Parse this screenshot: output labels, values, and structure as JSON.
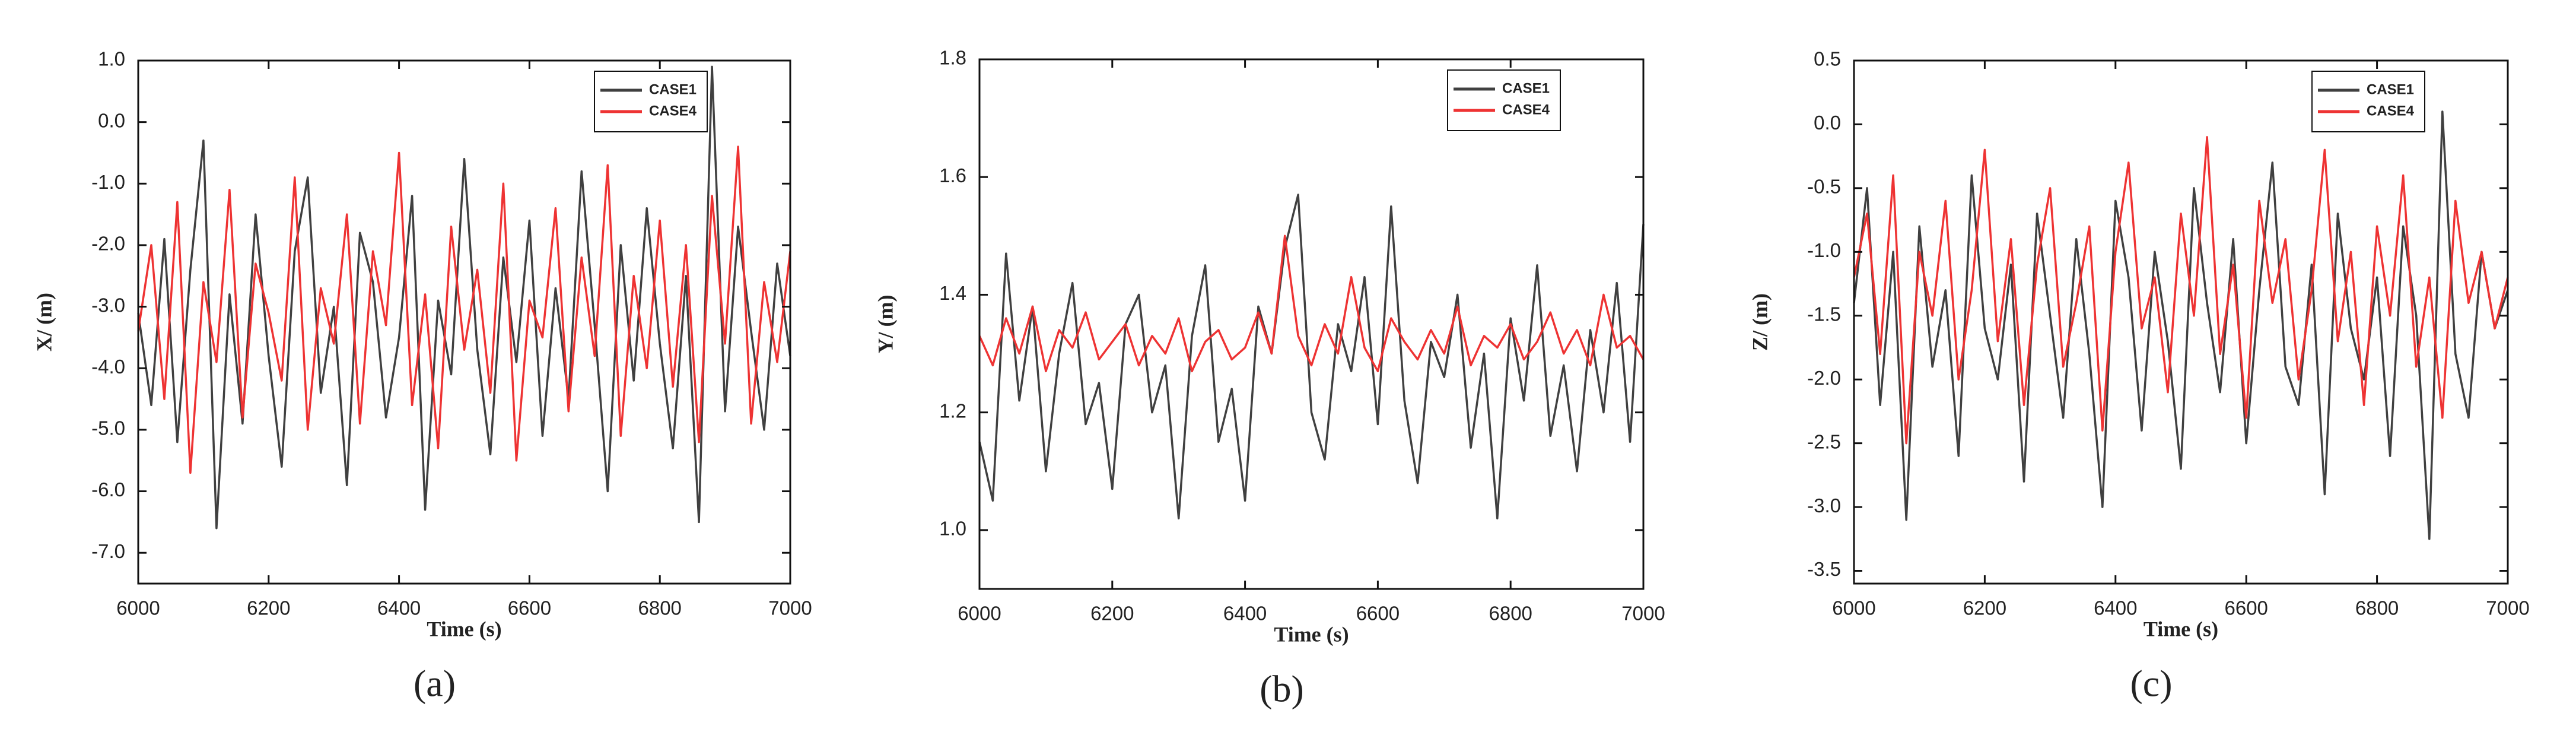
{
  "chart_data": [
    {
      "type": "line",
      "caption": "(a)",
      "xlabel": "Time (s)",
      "ylabel": "X/ (m)",
      "legend": "upper right",
      "xlim": [
        6000,
        7000
      ],
      "xticks": [
        6000,
        6200,
        6400,
        6600,
        6800,
        7000
      ],
      "ylim": [
        -7.5,
        1.0
      ],
      "yticks": [
        {
          "value": 1,
          "label": "1.0"
        },
        {
          "value": 0,
          "label": "0.0"
        },
        {
          "value": -1,
          "label": "-1.0"
        },
        {
          "value": -2,
          "label": "-2.0"
        },
        {
          "value": -3,
          "label": "-3.0"
        },
        {
          "value": -4,
          "label": "-4.0"
        },
        {
          "value": -5,
          "label": "-5.0"
        },
        {
          "value": -6,
          "label": "-6.0"
        },
        {
          "value": -7,
          "label": "-7.0"
        }
      ],
      "x": [
        6000,
        6020,
        6040,
        6060,
        6080,
        6100,
        6120,
        6140,
        6160,
        6180,
        6200,
        6220,
        6240,
        6260,
        6280,
        6300,
        6320,
        6340,
        6360,
        6380,
        6400,
        6420,
        6440,
        6460,
        6480,
        6500,
        6520,
        6540,
        6560,
        6580,
        6600,
        6620,
        6640,
        6660,
        6680,
        6700,
        6720,
        6740,
        6760,
        6780,
        6800,
        6820,
        6840,
        6860,
        6880,
        6900,
        6920,
        6940,
        6960,
        6980,
        7000
      ],
      "series": [
        {
          "name": "CASE1",
          "color": "#404040",
          "values": [
            -3.1,
            -4.6,
            -1.9,
            -5.2,
            -2.4,
            -0.3,
            -6.6,
            -2.8,
            -4.9,
            -1.5,
            -3.8,
            -5.6,
            -2.1,
            -0.9,
            -4.4,
            -3.0,
            -5.9,
            -1.8,
            -2.6,
            -4.8,
            -3.5,
            -1.2,
            -6.3,
            -2.9,
            -4.1,
            -0.6,
            -3.7,
            -5.4,
            -2.2,
            -3.9,
            -1.6,
            -5.1,
            -2.7,
            -4.5,
            -0.8,
            -3.3,
            -6.0,
            -2.0,
            -4.2,
            -1.4,
            -3.6,
            -5.3,
            -2.5,
            -6.5,
            0.9,
            -4.7,
            -1.7,
            -3.4,
            -5.0,
            -2.3,
            -3.8
          ]
        },
        {
          "name": "CASE4",
          "color": "#ee3333",
          "values": [
            -3.4,
            -2.0,
            -4.5,
            -1.3,
            -5.7,
            -2.6,
            -3.9,
            -1.1,
            -4.8,
            -2.3,
            -3.1,
            -4.2,
            -0.9,
            -5.0,
            -2.7,
            -3.6,
            -1.5,
            -4.9,
            -2.1,
            -3.3,
            -0.5,
            -4.6,
            -2.8,
            -5.3,
            -1.7,
            -3.7,
            -2.4,
            -4.4,
            -1.0,
            -5.5,
            -2.9,
            -3.5,
            -1.4,
            -4.7,
            -2.2,
            -3.8,
            -0.7,
            -5.1,
            -2.5,
            -4.0,
            -1.6,
            -4.3,
            -2.0,
            -5.2,
            -1.2,
            -3.6,
            -0.4,
            -4.9,
            -2.6,
            -3.9,
            -2.1
          ]
        }
      ]
    },
    {
      "type": "line",
      "caption": "(b)",
      "xlabel": "Time (s)",
      "ylabel": "Y/ (m)",
      "legend": "upper right",
      "xlim": [
        6000,
        7000
      ],
      "xticks": [
        6000,
        6200,
        6400,
        6600,
        6800,
        7000
      ],
      "ylim": [
        0.9,
        1.8
      ],
      "yticks": [
        {
          "value": 1,
          "label": "1.0"
        },
        1.2,
        1.4,
        1.6,
        1.8
      ],
      "x": [
        6000,
        6020,
        6040,
        6060,
        6080,
        6100,
        6120,
        6140,
        6160,
        6180,
        6200,
        6220,
        6240,
        6260,
        6280,
        6300,
        6320,
        6340,
        6360,
        6380,
        6400,
        6420,
        6440,
        6460,
        6480,
        6500,
        6520,
        6540,
        6560,
        6580,
        6600,
        6620,
        6640,
        6660,
        6680,
        6700,
        6720,
        6740,
        6760,
        6780,
        6800,
        6820,
        6840,
        6860,
        6880,
        6900,
        6920,
        6940,
        6960,
        6980,
        7000
      ],
      "series": [
        {
          "name": "CASE1",
          "color": "#404040",
          "values": [
            1.15,
            1.05,
            1.47,
            1.22,
            1.38,
            1.1,
            1.3,
            1.42,
            1.18,
            1.25,
            1.07,
            1.35,
            1.4,
            1.2,
            1.28,
            1.02,
            1.33,
            1.45,
            1.15,
            1.24,
            1.05,
            1.38,
            1.3,
            1.48,
            1.57,
            1.2,
            1.12,
            1.35,
            1.27,
            1.43,
            1.18,
            1.55,
            1.22,
            1.08,
            1.32,
            1.26,
            1.4,
            1.14,
            1.3,
            1.02,
            1.36,
            1.22,
            1.45,
            1.16,
            1.28,
            1.1,
            1.34,
            1.2,
            1.42,
            1.15,
            1.52
          ]
        },
        {
          "name": "CASE4",
          "color": "#ee3333",
          "values": [
            1.33,
            1.28,
            1.36,
            1.3,
            1.38,
            1.27,
            1.34,
            1.31,
            1.37,
            1.29,
            1.32,
            1.35,
            1.28,
            1.33,
            1.3,
            1.36,
            1.27,
            1.32,
            1.34,
            1.29,
            1.31,
            1.37,
            1.3,
            1.5,
            1.33,
            1.28,
            1.35,
            1.3,
            1.43,
            1.31,
            1.27,
            1.36,
            1.32,
            1.29,
            1.34,
            1.3,
            1.38,
            1.28,
            1.33,
            1.31,
            1.35,
            1.29,
            1.32,
            1.37,
            1.3,
            1.34,
            1.28,
            1.4,
            1.31,
            1.33,
            1.29
          ]
        }
      ]
    },
    {
      "type": "line",
      "caption": "(c)",
      "xlabel": "Time (s)",
      "ylabel": "Z/ (m)",
      "legend": "upper right",
      "xlim": [
        6000,
        7000
      ],
      "xticks": [
        6000,
        6200,
        6400,
        6600,
        6800,
        7000
      ],
      "ylim": [
        -3.6,
        0.5
      ],
      "yticks": [
        0.5,
        {
          "value": 0,
          "label": "0.0"
        },
        -0.5,
        {
          "value": -1,
          "label": "-1.0"
        },
        -1.5,
        {
          "value": -2,
          "label": "-2.0"
        },
        -2.5,
        {
          "value": -3,
          "label": "-3.0"
        },
        -3.5
      ],
      "x": [
        6000,
        6020,
        6040,
        6060,
        6080,
        6100,
        6120,
        6140,
        6160,
        6180,
        6200,
        6220,
        6240,
        6260,
        6280,
        6300,
        6320,
        6340,
        6360,
        6380,
        6400,
        6420,
        6440,
        6460,
        6480,
        6500,
        6520,
        6540,
        6560,
        6580,
        6600,
        6620,
        6640,
        6660,
        6680,
        6700,
        6720,
        6740,
        6760,
        6780,
        6800,
        6820,
        6840,
        6860,
        6880,
        6900,
        6920,
        6940,
        6960,
        6980,
        7000
      ],
      "series": [
        {
          "name": "CASE1",
          "color": "#404040",
          "values": [
            -1.4,
            -0.5,
            -2.2,
            -1.0,
            -3.1,
            -0.8,
            -1.9,
            -1.3,
            -2.6,
            -0.4,
            -1.6,
            -2.0,
            -1.1,
            -2.8,
            -0.7,
            -1.5,
            -2.3,
            -0.9,
            -1.8,
            -3.0,
            -0.6,
            -1.2,
            -2.4,
            -1.0,
            -1.7,
            -2.7,
            -0.5,
            -1.4,
            -2.1,
            -0.9,
            -2.5,
            -1.3,
            -0.3,
            -1.9,
            -2.2,
            -1.1,
            -2.9,
            -0.7,
            -1.6,
            -2.0,
            -1.2,
            -2.6,
            -0.8,
            -1.5,
            -3.25,
            0.1,
            -1.8,
            -2.3,
            -1.0,
            -1.6,
            -1.3
          ]
        },
        {
          "name": "CASE4",
          "color": "#ee3333",
          "values": [
            -1.2,
            -0.7,
            -1.8,
            -0.4,
            -2.5,
            -1.0,
            -1.5,
            -0.6,
            -2.0,
            -1.3,
            -0.2,
            -1.7,
            -0.9,
            -2.2,
            -1.1,
            -0.5,
            -1.9,
            -1.4,
            -0.8,
            -2.4,
            -1.0,
            -0.3,
            -1.6,
            -1.2,
            -2.1,
            -0.7,
            -1.5,
            -0.1,
            -1.8,
            -1.1,
            -2.3,
            -0.6,
            -1.4,
            -0.9,
            -2.0,
            -1.3,
            -0.2,
            -1.7,
            -1.0,
            -2.2,
            -0.8,
            -1.5,
            -0.4,
            -1.9,
            -1.2,
            -2.3,
            -0.6,
            -1.4,
            -1.0,
            -1.6,
            -1.2
          ]
        }
      ]
    }
  ]
}
